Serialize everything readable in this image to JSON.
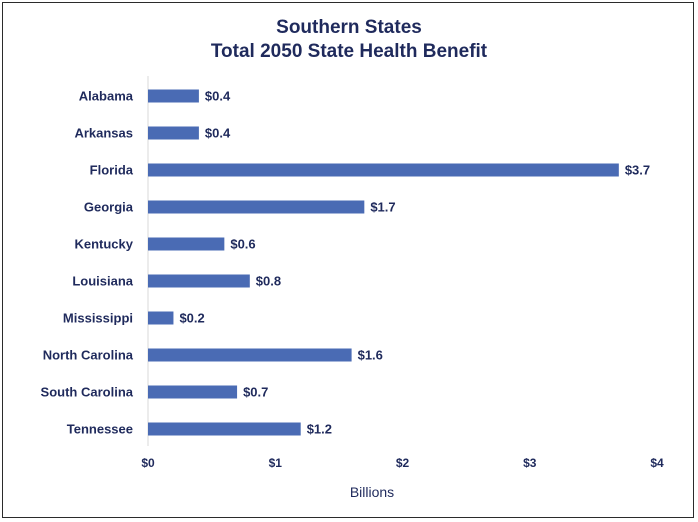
{
  "chart_data": {
    "type": "bar",
    "orientation": "horizontal",
    "title_line1": "Southern States",
    "title_line2": "Total 2050 State Health Benefit",
    "xlabel": "Billions",
    "ylabel": "",
    "xlim": [
      0,
      4
    ],
    "x_ticks": [
      {
        "value": 0,
        "label": "$0"
      },
      {
        "value": 1,
        "label": "$1"
      },
      {
        "value": 2,
        "label": "$2"
      },
      {
        "value": 3,
        "label": "$3"
      },
      {
        "value": 4,
        "label": "$4"
      }
    ],
    "categories": [
      "Alabama",
      "Arkansas",
      "Florida",
      "Georgia",
      "Kentucky",
      "Louisiana",
      "Mississippi",
      "North Carolina",
      "South Carolina",
      "Tennessee"
    ],
    "values": [
      0.4,
      0.4,
      3.7,
      1.7,
      0.6,
      0.8,
      0.2,
      1.6,
      0.7,
      1.2
    ],
    "value_labels": [
      "$0.4",
      "$0.4",
      "$3.7",
      "$1.7",
      "$0.6",
      "$0.8",
      "$0.2",
      "$1.6",
      "$0.7",
      "$1.2"
    ],
    "bar_color": "#4a6bb4",
    "text_color": "#1f2a5c",
    "grid": false,
    "legend": "none"
  }
}
